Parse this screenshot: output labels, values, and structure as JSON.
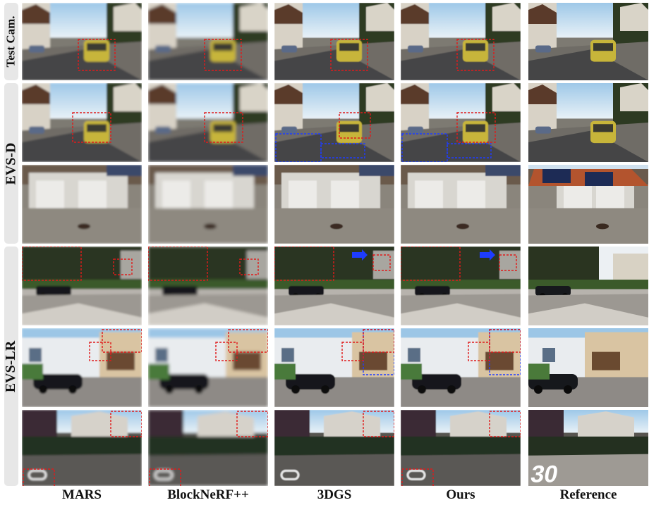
{
  "row_labels": {
    "test_cam": "Test Cam.",
    "evs_d": "EVS-D",
    "evs_lr": "EVS-LR"
  },
  "column_labels": [
    "MARS",
    "BlockNeRF++",
    "3DGS",
    "Ours",
    "Reference"
  ],
  "colors": {
    "highlight_red": "#e01b1b",
    "highlight_blue": "#1e3cff",
    "group_label_bg": "#e7e7e7"
  }
}
